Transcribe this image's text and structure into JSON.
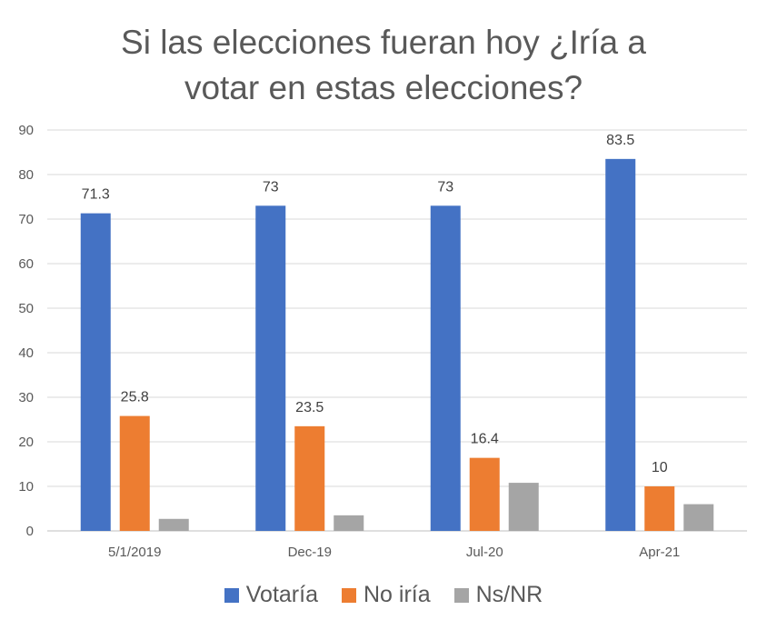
{
  "chart_data": {
    "type": "bar",
    "title_lines": [
      "Si las elecciones fueran hoy ¿Iría a",
      "votar en estas elecciones?"
    ],
    "categories": [
      "5/1/2019",
      "Dec-19",
      "Jul-20",
      "Apr-21"
    ],
    "series": [
      {
        "name": "Votaría",
        "color": "#4472C4",
        "values": [
          71.3,
          73,
          73,
          83.5
        ],
        "labels": [
          "71.3",
          "73",
          "73",
          "83.5"
        ]
      },
      {
        "name": "No iría",
        "color": "#ED7D31",
        "values": [
          25.8,
          23.5,
          16.4,
          10
        ],
        "labels": [
          "25.8",
          "23.5",
          "16.4",
          "10"
        ]
      },
      {
        "name": "Ns/NR",
        "color": "#A5A5A5",
        "values": [
          2.7,
          3.5,
          10.8,
          6
        ],
        "labels": []
      }
    ],
    "ylim": [
      0,
      90
    ],
    "yticks": [
      "0",
      "10",
      "20",
      "30",
      "40",
      "50",
      "60",
      "70",
      "80",
      "90"
    ],
    "grid": true,
    "legend_position": "bottom"
  }
}
